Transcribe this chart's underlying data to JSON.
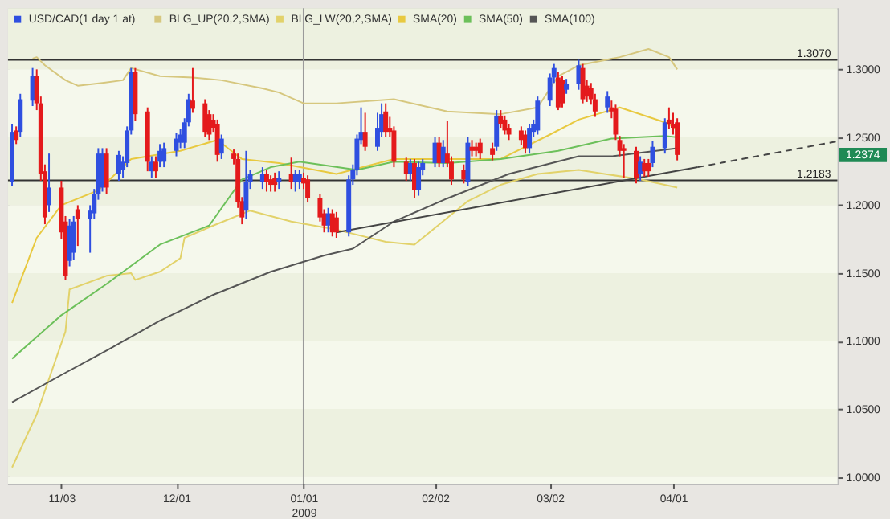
{
  "chart_data": {
    "type": "candlestick",
    "legend": "top left",
    "xlim": [
      "2008-10-21",
      "2009-05-11"
    ],
    "xticks": [
      {
        "value": "2008-11-03",
        "label": "11/03"
      },
      {
        "value": "2008-12-01",
        "label": "12/01"
      },
      {
        "value": "2009-01-01",
        "label": "01/01\n2009"
      },
      {
        "value": "2009-02-02",
        "label": "02/02"
      },
      {
        "value": "2009-03-02",
        "label": "03/02"
      },
      {
        "value": "2009-04-01",
        "label": "04/01"
      }
    ],
    "ylim": [
      0.995,
      1.345
    ],
    "yticks": [
      {
        "value": 1.0,
        "label": "1.0000"
      },
      {
        "value": 1.05,
        "label": "1.0500"
      },
      {
        "value": 1.1,
        "label": "1.1000"
      },
      {
        "value": 1.15,
        "label": "1.1500"
      },
      {
        "value": 1.2,
        "label": "1.2000"
      },
      {
        "value": 1.25,
        "label": "1.2500"
      },
      {
        "value": 1.3,
        "label": "1.3000"
      }
    ],
    "ref_lines": [
      {
        "axis": "y",
        "value": 1.307,
        "label": "1.3070",
        "color": "#333333"
      },
      {
        "axis": "y",
        "value": 1.2183,
        "label": "1.2183",
        "color": "#333333"
      },
      {
        "axis": "x",
        "value": "2009-01-01",
        "color": "#9a9a9a"
      }
    ],
    "annotations": [
      "1.2374"
    ],
    "series": [
      {
        "name": "USD/CAD(1 day 1 at)",
        "x": [
          "2008-10-22",
          "2008-10-23",
          "2008-10-24",
          "2008-10-27",
          "2008-10-28",
          "2008-10-29",
          "2008-10-30",
          "2008-10-31",
          "2008-11-03",
          "2008-11-04",
          "2008-11-05",
          "2008-11-06",
          "2008-11-07",
          "2008-11-10",
          "2008-11-11",
          "2008-11-12",
          "2008-11-13",
          "2008-11-14",
          "2008-11-17",
          "2008-11-18",
          "2008-11-19",
          "2008-11-20",
          "2008-11-21",
          "2008-11-24",
          "2008-11-25",
          "2008-11-26",
          "2008-11-27",
          "2008-11-28",
          "2008-12-01",
          "2008-12-02",
          "2008-12-03",
          "2008-12-04",
          "2008-12-05",
          "2008-12-08",
          "2008-12-09",
          "2008-12-10",
          "2008-12-11",
          "2008-12-12",
          "2008-12-15",
          "2008-12-16",
          "2008-12-17",
          "2008-12-18",
          "2008-12-19",
          "2008-12-22",
          "2008-12-23",
          "2008-12-24",
          "2008-12-25",
          "2008-12-26",
          "2008-12-29",
          "2008-12-30",
          "2008-12-31",
          "2009-01-01",
          "2009-01-02",
          "2009-01-05",
          "2009-01-06",
          "2009-01-07",
          "2009-01-08",
          "2009-01-09",
          "2009-01-12",
          "2009-01-13",
          "2009-01-14",
          "2009-01-15",
          "2009-01-16",
          "2009-01-19",
          "2009-01-20",
          "2009-01-21",
          "2009-01-22",
          "2009-01-23",
          "2009-01-26",
          "2009-01-27",
          "2009-01-28",
          "2009-01-29",
          "2009-01-30",
          "2009-02-02",
          "2009-02-03",
          "2009-02-04",
          "2009-02-05",
          "2009-02-06",
          "2009-02-09",
          "2009-02-10",
          "2009-02-11",
          "2009-02-12",
          "2009-02-13",
          "2009-02-16",
          "2009-02-17",
          "2009-02-18",
          "2009-02-19",
          "2009-02-20",
          "2009-02-23",
          "2009-02-24",
          "2009-02-25",
          "2009-02-26",
          "2009-02-27",
          "2009-03-02",
          "2009-03-03",
          "2009-03-04",
          "2009-03-05",
          "2009-03-06",
          "2009-03-09",
          "2009-03-10",
          "2009-03-11",
          "2009-03-12",
          "2009-03-13",
          "2009-03-16",
          "2009-03-17",
          "2009-03-18",
          "2009-03-19",
          "2009-03-20",
          "2009-03-23",
          "2009-03-24",
          "2009-03-25",
          "2009-03-26",
          "2009-03-27",
          "2009-03-30",
          "2009-03-31",
          "2009-04-01",
          "2009-04-02"
        ],
        "ohlc": [
          [
            1.217,
            1.26,
            1.214,
            1.254
          ],
          [
            1.255,
            1.258,
            1.245,
            1.248
          ],
          [
            1.254,
            1.282,
            1.25,
            1.278
          ],
          [
            1.277,
            1.301,
            1.273,
            1.295
          ],
          [
            1.295,
            1.3,
            1.27,
            1.275
          ],
          [
            1.275,
            1.28,
            1.218,
            1.223
          ],
          [
            1.225,
            1.23,
            1.186,
            1.191
          ],
          [
            1.2,
            1.238,
            1.195,
            1.213
          ],
          [
            1.213,
            1.218,
            1.175,
            1.18
          ],
          [
            1.188,
            1.192,
            1.145,
            1.148
          ],
          [
            1.159,
            1.19,
            1.155,
            1.185
          ],
          [
            1.165,
            1.192,
            1.16,
            1.188
          ],
          [
            1.197,
            1.2,
            1.17,
            1.19
          ],
          [
            1.19,
            1.2,
            1.165,
            1.196
          ],
          [
            1.194,
            1.212,
            1.19,
            1.208
          ],
          [
            1.208,
            1.242,
            1.204,
            1.238
          ],
          [
            1.213,
            1.242,
            1.21,
            1.238
          ],
          [
            1.238,
            1.242,
            1.208,
            1.213
          ],
          [
            1.223,
            1.24,
            1.218,
            1.237
          ],
          [
            1.226,
            1.236,
            1.22,
            1.232
          ],
          [
            1.231,
            1.258,
            1.228,
            1.255
          ],
          [
            1.255,
            1.301,
            1.252,
            1.298
          ],
          [
            1.298,
            1.301,
            1.262,
            1.267
          ],
          [
            1.269,
            1.272,
            1.225,
            1.232
          ],
          [
            1.225,
            1.236,
            1.22,
            1.232
          ],
          [
            1.232,
            1.236,
            1.22,
            1.225
          ],
          [
            1.232,
            1.245,
            1.228,
            1.24
          ],
          [
            1.232,
            1.246,
            1.228,
            1.242
          ],
          [
            1.24,
            1.253,
            1.236,
            1.249
          ],
          [
            1.246,
            1.256,
            1.242,
            1.252
          ],
          [
            1.246,
            1.264,
            1.242,
            1.261
          ],
          [
            1.261,
            1.282,
            1.258,
            1.278
          ],
          [
            1.277,
            1.301,
            1.268,
            1.271
          ],
          [
            1.275,
            1.278,
            1.25,
            1.254
          ],
          [
            1.267,
            1.27,
            1.248,
            1.252
          ],
          [
            1.263,
            1.267,
            1.254,
            1.257
          ],
          [
            1.26,
            1.263,
            1.232,
            1.237
          ],
          [
            1.238,
            1.252,
            1.234,
            1.249
          ],
          [
            1.238,
            1.241,
            1.23,
            1.234
          ],
          [
            1.234,
            1.238,
            1.198,
            1.202
          ],
          [
            1.203,
            1.206,
            1.186,
            1.191
          ],
          [
            1.196,
            1.24,
            1.19,
            1.217
          ],
          [
            1.217,
            1.226,
            1.212,
            1.223
          ],
          [
            1.217,
            1.228,
            1.212,
            1.223
          ],
          [
            1.223,
            1.226,
            1.21,
            1.217
          ],
          [
            1.219,
            1.222,
            1.21,
            1.215
          ],
          [
            1.22,
            1.224,
            1.21,
            1.215
          ],
          [
            1.217,
            1.225,
            1.212,
            1.22
          ],
          [
            1.223,
            1.235,
            1.212,
            1.217
          ],
          [
            1.217,
            1.226,
            1.21,
            1.223
          ],
          [
            1.217,
            1.226,
            1.212,
            1.223
          ],
          [
            1.22,
            1.224,
            1.212,
            1.216
          ],
          [
            1.219,
            1.222,
            1.202,
            1.205
          ],
          [
            1.205,
            1.208,
            1.188,
            1.191
          ],
          [
            1.194,
            1.197,
            1.18,
            1.185
          ],
          [
            1.185,
            1.198,
            1.18,
            1.194
          ],
          [
            1.194,
            1.197,
            1.177,
            1.18
          ],
          [
            1.191,
            1.195,
            1.176,
            1.18
          ],
          [
            1.18,
            1.222,
            1.177,
            1.219
          ],
          [
            1.219,
            1.23,
            1.215,
            1.226
          ],
          [
            1.226,
            1.252,
            1.222,
            1.249
          ],
          [
            1.248,
            1.272,
            1.245,
            1.254
          ],
          [
            1.254,
            1.268,
            1.24,
            1.243
          ],
          [
            1.243,
            1.268,
            1.24,
            1.257
          ],
          [
            1.254,
            1.275,
            1.25,
            1.267
          ],
          [
            1.269,
            1.275,
            1.25,
            1.254
          ],
          [
            1.257,
            1.265,
            1.25,
            1.254
          ],
          [
            1.255,
            1.258,
            1.228,
            1.232
          ],
          [
            1.232,
            1.235,
            1.218,
            1.223
          ],
          [
            1.223,
            1.234,
            1.218,
            1.231
          ],
          [
            1.231,
            1.234,
            1.205,
            1.211
          ],
          [
            1.211,
            1.232,
            1.207,
            1.228
          ],
          [
            1.226,
            1.234,
            1.222,
            1.231
          ],
          [
            1.231,
            1.25,
            1.228,
            1.246
          ],
          [
            1.246,
            1.25,
            1.228,
            1.231
          ],
          [
            1.231,
            1.248,
            1.228,
            1.243
          ],
          [
            1.238,
            1.262,
            1.228,
            1.231
          ],
          [
            1.232,
            1.236,
            1.215,
            1.219
          ],
          [
            1.226,
            1.23,
            1.216,
            1.219
          ],
          [
            1.217,
            1.25,
            1.214,
            1.246
          ],
          [
            1.243,
            1.248,
            1.236,
            1.24
          ],
          [
            1.243,
            1.246,
            1.236,
            1.24
          ],
          [
            1.246,
            1.249,
            1.234,
            1.238
          ],
          [
            1.242,
            1.246,
            1.233,
            1.237
          ],
          [
            1.243,
            1.27,
            1.24,
            1.266
          ],
          [
            1.266,
            1.27,
            1.257,
            1.26
          ],
          [
            1.263,
            1.266,
            1.252,
            1.255
          ],
          [
            1.257,
            1.26,
            1.248,
            1.252
          ],
          [
            1.255,
            1.258,
            1.244,
            1.248
          ],
          [
            1.252,
            1.255,
            1.238,
            1.242
          ],
          [
            1.242,
            1.26,
            1.238,
            1.257
          ],
          [
            1.254,
            1.263,
            1.25,
            1.26
          ],
          [
            1.255,
            1.28,
            1.252,
            1.277
          ],
          [
            1.277,
            1.297,
            1.273,
            1.294
          ],
          [
            1.294,
            1.304,
            1.29,
            1.301
          ],
          [
            1.294,
            1.298,
            1.27,
            1.272
          ],
          [
            1.292,
            1.295,
            1.272,
            1.275
          ],
          [
            1.285,
            1.293,
            1.282,
            1.289
          ],
          [
            1.289,
            1.307,
            1.285,
            1.303
          ],
          [
            1.301,
            1.304,
            1.275,
            1.278
          ],
          [
            1.288,
            1.292,
            1.276,
            1.28
          ],
          [
            1.286,
            1.29,
            1.274,
            1.278
          ],
          [
            1.278,
            1.282,
            1.265,
            1.269
          ],
          [
            1.272,
            1.284,
            1.268,
            1.28
          ],
          [
            1.272,
            1.277,
            1.264,
            1.269
          ],
          [
            1.271,
            1.274,
            1.248,
            1.252
          ],
          [
            1.248,
            1.251,
            1.236,
            1.24
          ],
          [
            1.242,
            1.245,
            1.22,
            1.24
          ],
          [
            1.24,
            1.243,
            1.216,
            1.22
          ],
          [
            1.223,
            1.236,
            1.218,
            1.232
          ],
          [
            1.231,
            1.234,
            1.221,
            1.225
          ],
          [
            1.231,
            1.234,
            1.221,
            1.225
          ],
          [
            1.231,
            1.247,
            1.228,
            1.243
          ],
          [
            1.242,
            1.264,
            1.238,
            1.261
          ],
          [
            1.263,
            1.272,
            1.256,
            1.26
          ],
          [
            1.26,
            1.268,
            1.252,
            1.257
          ],
          [
            1.261,
            1.264,
            1.233,
            1.237
          ]
        ],
        "colors": [
          "#2f4fe0",
          "#e41a1c",
          "#2f4fe0",
          "#2f4fe0",
          "#e41a1c",
          "#e41a1c",
          "#e41a1c",
          "#2f4fe0",
          "#e41a1c",
          "#e41a1c",
          "#2f4fe0",
          "#2f4fe0",
          "#e41a1c",
          "#2f4fe0",
          "#2f4fe0",
          "#2f4fe0",
          "#2f4fe0",
          "#e41a1c",
          "#2f4fe0",
          "#2f4fe0",
          "#2f4fe0",
          "#2f4fe0",
          "#e41a1c",
          "#e41a1c",
          "#2f4fe0",
          "#e41a1c",
          "#2f4fe0",
          "#2f4fe0",
          "#2f4fe0",
          "#2f4fe0",
          "#2f4fe0",
          "#2f4fe0",
          "#e41a1c",
          "#e41a1c",
          "#e41a1c",
          "#e41a1c",
          "#e41a1c",
          "#2f4fe0",
          "#e41a1c",
          "#e41a1c",
          "#e41a1c",
          "#2f4fe0",
          "#2f4fe0",
          "#2f4fe0",
          "#e41a1c",
          "#e41a1c",
          "#e41a1c",
          "#2f4fe0",
          "#e41a1c",
          "#2f4fe0",
          "#2f4fe0",
          "#e41a1c",
          "#e41a1c",
          "#e41a1c",
          "#e41a1c",
          "#2f4fe0",
          "#e41a1c",
          "#e41a1c",
          "#2f4fe0",
          "#2f4fe0",
          "#2f4fe0",
          "#2f4fe0",
          "#e41a1c",
          "#2f4fe0",
          "#2f4fe0",
          "#e41a1c",
          "#e41a1c",
          "#e41a1c",
          "#e41a1c",
          "#2f4fe0",
          "#e41a1c",
          "#2f4fe0",
          "#2f4fe0",
          "#2f4fe0",
          "#e41a1c",
          "#2f4fe0",
          "#e41a1c",
          "#e41a1c",
          "#e41a1c",
          "#2f4fe0",
          "#e41a1c",
          "#e41a1c",
          "#e41a1c",
          "#e41a1c",
          "#2f4fe0",
          "#e41a1c",
          "#e41a1c",
          "#e41a1c",
          "#e41a1c",
          "#e41a1c",
          "#2f4fe0",
          "#2f4fe0",
          "#2f4fe0",
          "#2f4fe0",
          "#2f4fe0",
          "#e41a1c",
          "#e41a1c",
          "#2f4fe0",
          "#2f4fe0",
          "#e41a1c",
          "#e41a1c",
          "#e41a1c",
          "#e41a1c",
          "#2f4fe0",
          "#e41a1c",
          "#e41a1c",
          "#e41a1c",
          "#e41a1c",
          "#e41a1c",
          "#2f4fe0",
          "#e41a1c",
          "#e41a1c",
          "#2f4fe0",
          "#2f4fe0",
          "#e41a1c",
          "#e41a1c",
          "#e41a1c"
        ]
      },
      {
        "name": "BLG_UP(20,2,SMA)",
        "type": "line",
        "color": "#d6c77e",
        "x": [
          "2008-10-27",
          "2008-10-28",
          "2008-10-30",
          "2008-11-04",
          "2008-11-07",
          "2008-11-13",
          "2008-11-18",
          "2008-11-20",
          "2008-11-27",
          "2008-12-05",
          "2008-12-12",
          "2008-12-22",
          "2008-12-26",
          "2009-01-01",
          "2009-01-09",
          "2009-01-23",
          "2009-02-05",
          "2009-02-18",
          "2009-02-27",
          "2009-03-04",
          "2009-03-09",
          "2009-03-19",
          "2009-03-26",
          "2009-03-31",
          "2009-04-02"
        ],
        "values": [
          1.308,
          1.309,
          1.303,
          1.292,
          1.288,
          1.29,
          1.292,
          1.301,
          1.295,
          1.294,
          1.292,
          1.286,
          1.283,
          1.275,
          1.275,
          1.278,
          1.269,
          1.267,
          1.272,
          1.295,
          1.303,
          1.309,
          1.315,
          1.309,
          1.3
        ]
      },
      {
        "name": "BLG_LW(20,2,SMA)",
        "type": "line",
        "color": "#e2d26a",
        "x": [
          "2008-10-22",
          "2008-10-28",
          "2008-11-04",
          "2008-11-05",
          "2008-11-14",
          "2008-11-20",
          "2008-11-21",
          "2008-11-27",
          "2008-12-02",
          "2008-12-03",
          "2008-12-10",
          "2008-12-19",
          "2008-12-29",
          "2009-01-09",
          "2009-01-21",
          "2009-01-28",
          "2009-02-10",
          "2009-02-18",
          "2009-02-27",
          "2009-03-09",
          "2009-03-24",
          "2009-04-02"
        ],
        "values": [
          1.007,
          1.046,
          1.107,
          1.138,
          1.148,
          1.15,
          1.145,
          1.151,
          1.161,
          1.176,
          1.185,
          1.196,
          1.188,
          1.182,
          1.173,
          1.171,
          1.203,
          1.215,
          1.223,
          1.226,
          1.219,
          1.213
        ]
      },
      {
        "name": "SMA(20)",
        "type": "line",
        "color": "#e8c940",
        "x": [
          "2008-10-22",
          "2008-10-28",
          "2008-11-03",
          "2008-11-12",
          "2008-11-20",
          "2008-12-02",
          "2008-12-11",
          "2008-12-17",
          "2008-12-26",
          "2009-01-09",
          "2009-01-23",
          "2009-02-18",
          "2009-03-02",
          "2009-03-09",
          "2009-03-19",
          "2009-03-31",
          "2009-04-02"
        ],
        "values": [
          1.128,
          1.176,
          1.2,
          1.211,
          1.234,
          1.24,
          1.248,
          1.234,
          1.231,
          1.223,
          1.234,
          1.234,
          1.252,
          1.263,
          1.272,
          1.26,
          1.255
        ]
      },
      {
        "name": "SMA(50)",
        "type": "line",
        "color": "#6cc05a",
        "x": [
          "2008-10-22",
          "2008-11-03",
          "2008-11-14",
          "2008-11-27",
          "2008-12-09",
          "2008-12-17",
          "2008-12-24",
          "2008-12-31",
          "2009-01-14",
          "2009-01-23",
          "2009-02-05",
          "2009-02-18",
          "2009-03-04",
          "2009-03-17",
          "2009-03-30",
          "2009-04-02"
        ],
        "values": [
          1.087,
          1.119,
          1.142,
          1.171,
          1.185,
          1.219,
          1.228,
          1.232,
          1.226,
          1.232,
          1.231,
          1.234,
          1.24,
          1.249,
          1.251,
          1.25
        ]
      },
      {
        "name": "SMA(100)",
        "type": "line",
        "color": "#555555",
        "x": [
          "2008-10-22",
          "2008-11-03",
          "2008-11-14",
          "2008-11-27",
          "2008-12-10",
          "2008-12-24",
          "2009-01-06",
          "2009-01-13",
          "2009-01-23",
          "2009-02-05",
          "2009-02-20",
          "2009-03-09",
          "2009-03-17",
          "2009-04-02"
        ],
        "values": [
          1.055,
          1.075,
          1.093,
          1.115,
          1.134,
          1.151,
          1.163,
          1.168,
          1.188,
          1.205,
          1.223,
          1.236,
          1.236,
          1.242
        ]
      },
      {
        "type": "line",
        "color": "#444444",
        "x": [
          "2009-01-09",
          "2009-04-07"
        ],
        "values": [
          1.18,
          1.228
        ]
      },
      {
        "type": "line",
        "color": "#444444",
        "line_style": "dashed",
        "x": [
          "2009-04-07",
          "2009-05-11"
        ],
        "values": [
          1.228,
          1.247
        ]
      }
    ]
  }
}
